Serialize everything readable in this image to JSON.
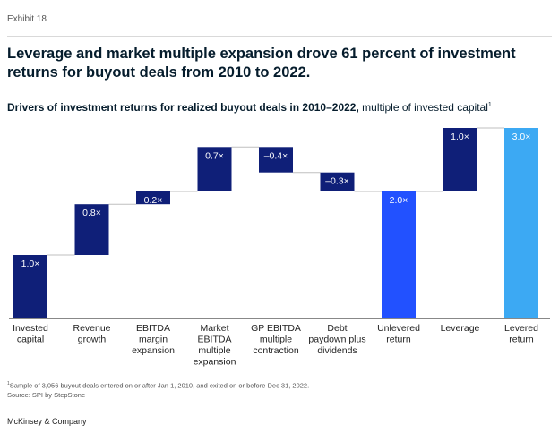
{
  "exhibit": "Exhibit 18",
  "headline": "Leverage and market multiple expansion drove 61 percent of investment returns for buyout deals from 2010 to 2022.",
  "subtitle": {
    "bold": "Drivers of investment returns for realized buyout deals in 2010–2022,",
    "normal": " multiple of invested capital",
    "sup": "1"
  },
  "colors": {
    "dark": "#0f1f78",
    "mid": "#2251ff",
    "light": "#3ca9f3",
    "connector": "#bfbfbf",
    "baseline": "#888888"
  },
  "chart_data": {
    "type": "waterfall",
    "unit": "×",
    "ylim": [
      0,
      3.0
    ],
    "bars": [
      {
        "label": [
          "Invested",
          "capital"
        ],
        "value": 1.0,
        "display": "1.0×",
        "kind": "total"
      },
      {
        "label": [
          "Revenue",
          "growth"
        ],
        "value": 0.8,
        "display": "0.8×",
        "kind": "delta"
      },
      {
        "label": [
          "EBITDA",
          "margin",
          "expansion"
        ],
        "value": 0.2,
        "display": "0.2×",
        "kind": "delta"
      },
      {
        "label": [
          "Market",
          "EBITDA",
          "multiple",
          "expansion"
        ],
        "value": 0.7,
        "display": "0.7×",
        "kind": "delta"
      },
      {
        "label": [
          "GP EBITDA",
          "multiple",
          "contraction"
        ],
        "value": -0.4,
        "display": "–0.4×",
        "kind": "delta"
      },
      {
        "label": [
          "Debt",
          "paydown plus",
          "dividends"
        ],
        "value": -0.3,
        "display": "–0.3×",
        "kind": "delta"
      },
      {
        "label": [
          "Unlevered",
          "return"
        ],
        "value": 2.0,
        "display": "2.0×",
        "kind": "subtotal"
      },
      {
        "label": [
          "Leverage"
        ],
        "value": 1.0,
        "display": "1.0×",
        "kind": "delta"
      },
      {
        "label": [
          "Levered",
          "return"
        ],
        "value": 3.0,
        "display": "3.0×",
        "kind": "final"
      }
    ]
  },
  "footnote": {
    "sup": "1",
    "line1": "Sample of 3,056 buyout deals entered on or after Jan 1, 2010, and exited on or before Dec 31, 2022.",
    "line2": "Source: SPI by StepStone"
  },
  "brand": "McKinsey & Company"
}
